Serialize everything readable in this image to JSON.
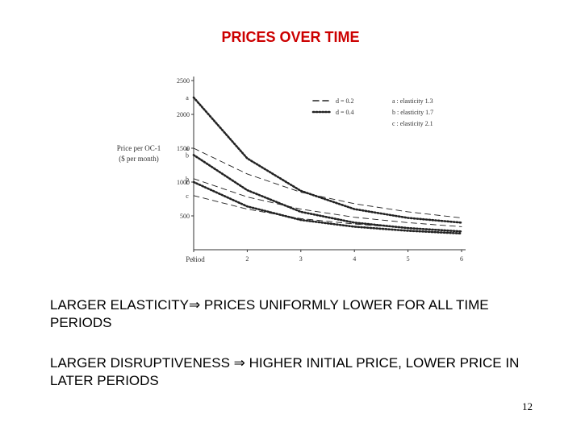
{
  "slide": {
    "title": "PRICES OVER TIME",
    "bullets": [
      {
        "pre": "LARGER ELASTICITY",
        "arrow": "⇒",
        "post": " PRICES UNIFORMLY LOWER FOR ALL TIME PERIODS"
      },
      {
        "pre": "LARGER DISRUPTIVENESS ",
        "arrow": "⇒",
        "post": " HIGHER INITIAL PRICE, LOWER PRICE IN LATER PERIODS"
      }
    ],
    "page_number": "12"
  },
  "chart_data": {
    "type": "line",
    "ylabel": [
      "Price per OC-1",
      "($ per month)"
    ],
    "xlabel": "Period",
    "x": [
      1,
      2,
      3,
      4,
      5,
      6
    ],
    "xlim": [
      1,
      6
    ],
    "ylim": [
      0,
      2500
    ],
    "yticks": [
      500,
      1000,
      1500,
      2000,
      2500
    ],
    "xticks": [
      1,
      2,
      3,
      4,
      5,
      6
    ],
    "legend": {
      "placement": "top-right",
      "styles": [
        {
          "label": "d = 0.2",
          "dash": "dashed"
        },
        {
          "label": "d = 0.4",
          "dash": "dotted"
        }
      ],
      "elasticities": [
        "a : elasticity 1.3",
        "b : elasticity 1.7",
        "c : elasticity 2.1"
      ]
    },
    "series": [
      {
        "tag": "a",
        "style": "dotted",
        "values": [
          2250,
          1350,
          870,
          600,
          470,
          400
        ]
      },
      {
        "tag": "a",
        "style": "dashed",
        "values": [
          1500,
          1120,
          850,
          680,
          560,
          470
        ]
      },
      {
        "tag": "b",
        "style": "dotted",
        "values": [
          1400,
          880,
          560,
          400,
          320,
          270
        ]
      },
      {
        "tag": "b",
        "style": "dashed",
        "values": [
          1050,
          780,
          600,
          480,
          400,
          340
        ]
      },
      {
        "tag": "c",
        "style": "dotted",
        "values": [
          1000,
          640,
          440,
          340,
          280,
          240
        ]
      },
      {
        "tag": "c",
        "style": "dashed",
        "values": [
          800,
          600,
          460,
          380,
          320,
          270
        ]
      }
    ],
    "colors": {
      "line": "#222222",
      "axis": "#333333"
    }
  }
}
